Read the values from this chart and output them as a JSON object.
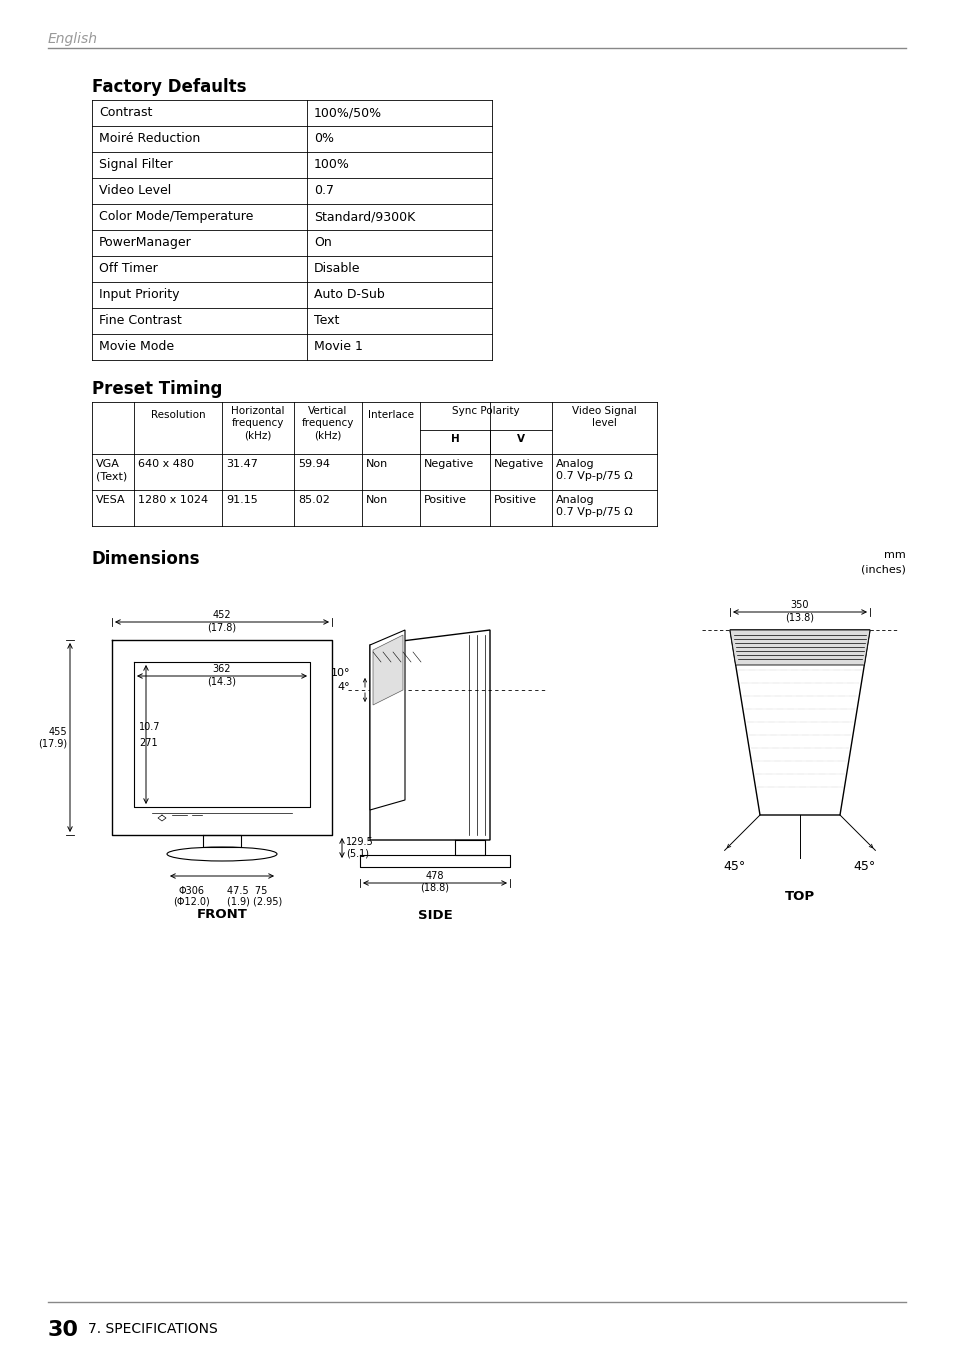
{
  "header_text": "English",
  "header_line_color": "#888888",
  "factory_defaults_title": "Factory Defaults",
  "factory_defaults_rows": [
    [
      "Contrast",
      "100%/50%"
    ],
    [
      "Moiré Reduction",
      "0%"
    ],
    [
      "Signal Filter",
      "100%"
    ],
    [
      "Video Level",
      "0.7"
    ],
    [
      "Color Mode/Temperature",
      "Standard/9300K"
    ],
    [
      "PowerManager",
      "On"
    ],
    [
      "Off Timer",
      "Disable"
    ],
    [
      "Input Priority",
      "Auto D-Sub"
    ],
    [
      "Fine Contrast",
      "Text"
    ],
    [
      "Movie Mode",
      "Movie 1"
    ]
  ],
  "preset_timing_title": "Preset Timing",
  "preset_timing_rows": [
    [
      "VGA\n(Text)",
      "640 x 480",
      "31.47",
      "59.94",
      "Non",
      "Negative",
      "Negative",
      "Analog\n0.7 Vp-p/75 Ω"
    ],
    [
      "VESA",
      "1280 x 1024",
      "91.15",
      "85.02",
      "Non",
      "Positive",
      "Positive",
      "Analog\n0.7 Vp-p/75 Ω"
    ]
  ],
  "dimensions_title": "Dimensions",
  "dimensions_unit1": "mm",
  "dimensions_unit2": "(inches)",
  "footer_line_color": "#888888",
  "footer_text": "30",
  "footer_subtext": "7. SPECIFICATIONS",
  "background_color": "#ffffff",
  "text_color": "#000000"
}
